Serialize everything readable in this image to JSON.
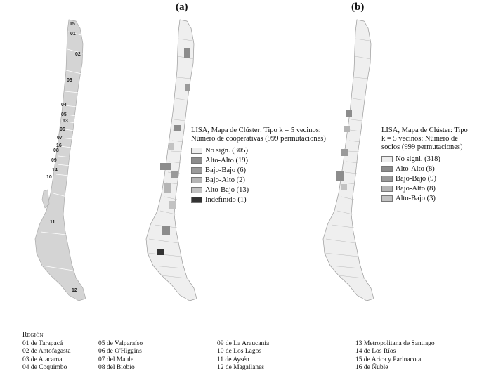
{
  "panels": [
    {
      "label": "(a)"
    },
    {
      "label": "(b)"
    }
  ],
  "map_a": {
    "legend_title": "LISA, Mapa de Clúster: Tipo k = 5 vecinos: Número de cooperativas (999 permutaciones)",
    "items": [
      {
        "label": "No sign. (305)",
        "color": "#eeeeee"
      },
      {
        "label": "Alto-Alto (19)",
        "color": "#8c8c8c"
      },
      {
        "label": "Bajo-Bajo (6)",
        "color": "#9a9a9a"
      },
      {
        "label": "Bajo-Alto (2)",
        "color": "#b5b5b5"
      },
      {
        "label": "Alto-Bajo (13)",
        "color": "#c2c2c2"
      },
      {
        "label": "Indefinido (1)",
        "color": "#333333"
      }
    ]
  },
  "map_b": {
    "legend_title": "LISA, Mapa de Clúster: Tipo k = 5 vecinos: Número de socios (999 permutaciones)",
    "items": [
      {
        "label": "No signi. (318)",
        "color": "#eeeeee"
      },
      {
        "label": "Alto-Alto (8)",
        "color": "#8c8c8c"
      },
      {
        "label": "Bajo-Bajo (9)",
        "color": "#9a9a9a"
      },
      {
        "label": "Bajo-Alto (8)",
        "color": "#b5b5b5"
      },
      {
        "label": "Alto-Bajo (3)",
        "color": "#c2c2c2"
      }
    ]
  },
  "region_numbers": [
    "15",
    "01",
    "02",
    "03",
    "04",
    "05",
    "13",
    "06",
    "07",
    "16",
    "08",
    "09",
    "14",
    "10",
    "11",
    "12"
  ],
  "regions_heading": "Región",
  "regions": [
    [
      "01 de Tarapacá",
      "02 de Antofagasta",
      "03 de Atacama",
      "04 de Coquimbo"
    ],
    [
      "05 de Valparaíso",
      "06 de O'Higgins",
      "07 del Maule",
      "08 del Biobío"
    ],
    [
      "09 de La Araucanía",
      "10 de Los Lagos",
      "11 de Aysén",
      "12 de Magallanes"
    ],
    [
      "13 Metropolitana de Santiago",
      "14 de Los Ríos",
      "15 de Arica y Parinacota",
      "16 de Ñuble"
    ]
  ]
}
